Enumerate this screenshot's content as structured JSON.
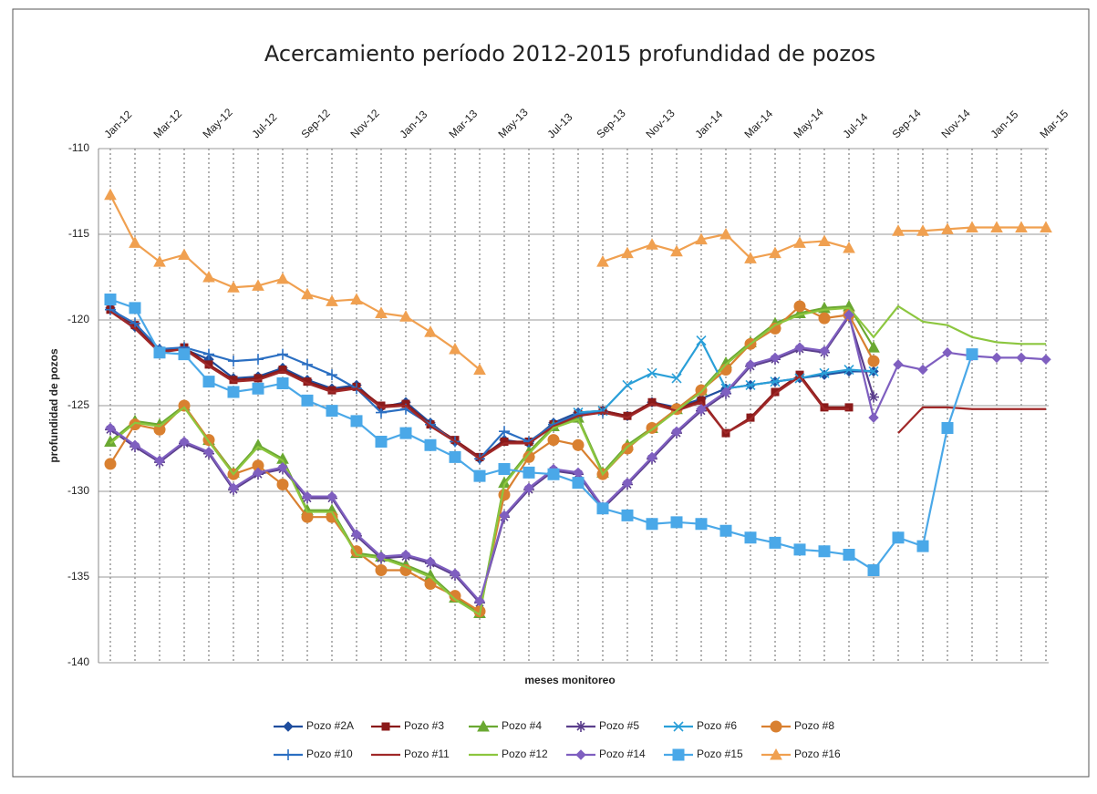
{
  "chart_data": {
    "type": "line",
    "title": "Acercamiento  período 2012-2015 profundidad de pozos",
    "x_label": "meses monitoreo",
    "y_label": "profundidad de pozos",
    "categories": [
      "Jan-12",
      null,
      "Mar-12",
      null,
      "May-12",
      null,
      "Jul-12",
      null,
      "Sep-12",
      null,
      "Nov-12",
      null,
      "Jan-13",
      null,
      "Mar-13",
      null,
      "May-13",
      null,
      "Jul-13",
      null,
      "Sep-13",
      null,
      "Nov-13",
      null,
      "Jan-14",
      null,
      "Mar-14",
      null,
      "May-14",
      null,
      "Jul-14",
      null,
      "Sep-14",
      null,
      "Nov-14",
      null,
      "Jan-15",
      null,
      "Mar-15"
    ],
    "ylim": [
      -140,
      -110
    ],
    "yticks": [
      -140,
      -135,
      -130,
      -125,
      -120,
      -115,
      -110
    ],
    "grid": true,
    "series": [
      {
        "name": "Pozo #2A",
        "color": "#1f4e9e",
        "marker": "diamond",
        "values": [
          -119.3,
          -120.4,
          -121.7,
          -121.7,
          -122.3,
          -123.4,
          -123.3,
          -122.8,
          -123.5,
          -124,
          -123.8,
          -125.1,
          -124.8,
          -126,
          -127.1,
          -128.1,
          -127,
          -127.2,
          -126,
          -125.4,
          -125.3,
          -125.6,
          -124.8,
          -125.1,
          -124.6,
          -124,
          -123.8,
          -123.6,
          -123.4,
          -123.2,
          -123,
          -123,
          null,
          null,
          null,
          null,
          null,
          null,
          null
        ]
      },
      {
        "name": "Pozo #3",
        "color": "#8b1a1a",
        "marker": "square",
        "values": [
          -119.4,
          -120.3,
          -121.8,
          -121.6,
          -122.6,
          -123.5,
          -123.4,
          -122.9,
          -123.6,
          -124.1,
          -123.9,
          -125,
          -124.9,
          -126.1,
          -127,
          -128,
          -127.1,
          -127.1,
          -126.1,
          -125.5,
          -125.3,
          -125.6,
          -124.8,
          -125.2,
          -124.7,
          -126.6,
          -125.7,
          -124.2,
          -123.2,
          -125.1,
          -125.1,
          null,
          null,
          null,
          null,
          null,
          null,
          null,
          null
        ]
      },
      {
        "name": "Pozo #4",
        "color": "#6aa832",
        "marker": "triangle",
        "values": [
          -127.1,
          -125.9,
          -126.1,
          -125,
          -127,
          -128.9,
          -127.3,
          -128.1,
          -131.1,
          -131.1,
          -133.6,
          -133.8,
          -134.3,
          -134.9,
          -136.2,
          -137.1,
          -129.5,
          -127.7,
          -126.2,
          -125.7,
          -128.9,
          -127.3,
          -126.3,
          -125.2,
          -124.1,
          -122.5,
          -121.3,
          -120.2,
          -119.6,
          -119.3,
          -119.2,
          -121.6,
          null,
          null,
          null,
          null,
          null,
          null,
          null
        ]
      },
      {
        "name": "Pozo #5",
        "color": "#5b3f8c",
        "marker": "cross",
        "values": [
          -126.4,
          -127.4,
          -128.3,
          -127.2,
          -127.8,
          -129.9,
          -129,
          -128.7,
          -130.4,
          -130.4,
          -132.6,
          -133.9,
          -133.8,
          -134.2,
          -134.9,
          -136.5,
          -131.5,
          -129.9,
          -128.8,
          -129,
          -131,
          -129.6,
          -128.1,
          -126.6,
          -125.3,
          -124.3,
          -122.7,
          -122.3,
          -121.7,
          -121.9,
          -119.8,
          -124.5,
          null,
          null,
          null,
          null,
          null,
          null,
          null
        ]
      },
      {
        "name": "Pozo #6",
        "color": "#2a9fd8",
        "marker": "x",
        "values": [
          null,
          null,
          null,
          null,
          null,
          null,
          null,
          null,
          null,
          null,
          null,
          null,
          null,
          null,
          null,
          null,
          null,
          null,
          null,
          -125.4,
          -125.3,
          -123.8,
          -123.1,
          -123.4,
          -121.2,
          -124,
          -123.8,
          -123.6,
          -123.4,
          -123.1,
          -122.9,
          -123,
          null,
          null,
          null,
          null,
          null,
          null,
          null
        ]
      },
      {
        "name": "Pozo #8",
        "color": "#d98030",
        "marker": "circle",
        "values": [
          -128.4,
          -126.1,
          -126.4,
          -125,
          -127,
          -129,
          -128.5,
          -129.6,
          -131.5,
          -131.5,
          -133.5,
          -134.6,
          -134.6,
          -135.4,
          -136.1,
          -137,
          -130.2,
          -128,
          -127,
          -127.3,
          -129,
          -127.5,
          -126.3,
          -125.2,
          -124.1,
          -122.9,
          -121.4,
          -120.5,
          -119.2,
          -119.9,
          -119.7,
          -122.4,
          null,
          null,
          null,
          null,
          null,
          null,
          null
        ]
      },
      {
        "name": "Pozo #10",
        "color": "#2b6fc2",
        "marker": "plus",
        "values": [
          -119.4,
          -120.2,
          -121.7,
          -121.6,
          -122,
          -122.4,
          -122.3,
          -122,
          -122.6,
          -123.2,
          -124,
          -125.4,
          -125.2,
          -126.1,
          -127.1,
          -128.1,
          -126.5,
          -127.1,
          -126.1,
          -125.5,
          -125.4,
          null,
          null,
          null,
          null,
          null,
          null,
          null,
          null,
          null,
          null,
          null,
          null,
          null,
          null,
          null,
          null,
          null,
          null
        ]
      },
      {
        "name": "Pozo #11",
        "color": "#a02828",
        "marker": "none",
        "values": [
          -119.5,
          -120.5,
          -121.9,
          -121.7,
          -122.7,
          -123.6,
          -123.5,
          -123,
          -123.7,
          -124.2,
          -124,
          -125.1,
          -125,
          -126.2,
          -127.1,
          -128.1,
          -127.2,
          -127.2,
          -126.2,
          -125.6,
          -125.4,
          -125.7,
          -124.9,
          -125.3,
          -124.8,
          -126.6,
          -125.8,
          -124.3,
          -123.3,
          -125.2,
          -125.2,
          null,
          -126.6,
          -125.1,
          -125.1,
          -125.2,
          -125.2,
          -125.2,
          -125.2
        ]
      },
      {
        "name": "Pozo #12",
        "color": "#8cc63f",
        "marker": "none",
        "values": [
          -127.2,
          -126,
          -126.2,
          -125.1,
          -127.1,
          -129,
          -127.4,
          -128.2,
          -131.2,
          -131.2,
          -133.7,
          -133.9,
          -134.4,
          -135,
          -136.3,
          -137.2,
          -129.6,
          -127.8,
          -126.3,
          -125.8,
          -129,
          -127.4,
          -126.4,
          -125.3,
          -124.2,
          -122.6,
          -121.4,
          -120.3,
          -119.7,
          -119.4,
          -119.3,
          -121,
          -119.2,
          -120.1,
          -120.3,
          -121,
          -121.3,
          -121.4,
          -121.4
        ]
      },
      {
        "name": "Pozo #14",
        "color": "#7f5fc0",
        "marker": "diamond",
        "values": [
          -126.3,
          -127.3,
          -128.2,
          -127.1,
          -127.7,
          -129.8,
          -128.9,
          -128.6,
          -130.3,
          -130.3,
          -132.5,
          -133.8,
          -133.7,
          -134.1,
          -134.8,
          -136.4,
          -131.4,
          -129.8,
          -128.7,
          -128.9,
          -130.9,
          -129.5,
          -128,
          -126.5,
          -125.2,
          -124.2,
          -122.6,
          -122.2,
          -121.6,
          -121.8,
          -119.7,
          -125.7,
          -122.6,
          -122.9,
          -121.9,
          -122.1,
          -122.2,
          -122.2,
          -122.3
        ]
      },
      {
        "name": "Pozo #15",
        "color": "#4aa8e8",
        "marker": "bigsquare",
        "values": [
          -118.8,
          -119.3,
          -121.9,
          -122,
          -123.6,
          -124.2,
          -124,
          -123.7,
          -124.7,
          -125.3,
          -125.9,
          -127.1,
          -126.6,
          -127.3,
          -128,
          -129.1,
          -128.7,
          -128.9,
          -129,
          -129.5,
          -131,
          -131.4,
          -131.9,
          -131.8,
          -131.9,
          -132.3,
          -132.7,
          -133,
          -133.4,
          -133.5,
          -133.7,
          -134.6,
          -132.7,
          -133.2,
          -126.3,
          -122,
          null,
          null,
          null
        ]
      },
      {
        "name": "Pozo #16",
        "color": "#f0a050",
        "marker": "triangle",
        "values": [
          -112.7,
          -115.5,
          -116.6,
          -116.2,
          -117.5,
          -118.1,
          -118,
          -117.6,
          -118.5,
          -118.9,
          -118.8,
          -119.6,
          -119.8,
          -120.7,
          -121.7,
          -122.9,
          null,
          null,
          null,
          null,
          -116.6,
          -116.1,
          -115.6,
          -116,
          -115.3,
          -115,
          -116.4,
          -116.1,
          -115.5,
          -115.4,
          -115.8,
          null,
          -114.8,
          -114.8,
          -114.7,
          -114.6,
          -114.6,
          -114.6,
          -114.6
        ]
      }
    ]
  }
}
